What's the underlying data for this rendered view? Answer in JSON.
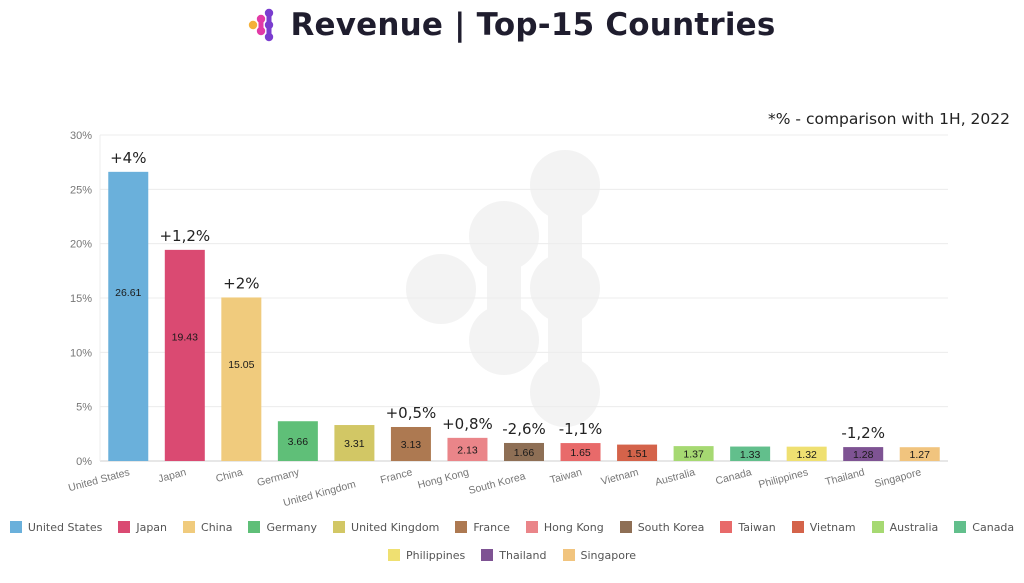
{
  "header": {
    "title": "Revenue | Top-15 Countries",
    "logo": "dots-logo-icon",
    "note": "*% - comparison with 1H, 2022"
  },
  "chart_data": {
    "type": "bar",
    "title": "Revenue | Top-15 Countries",
    "xlabel": "",
    "ylabel": "",
    "ylim": [
      0,
      30
    ],
    "yticks": [
      "0%",
      "5%",
      "10%",
      "15%",
      "20%",
      "25%",
      "30%"
    ],
    "ytick_values": [
      0,
      5,
      10,
      15,
      20,
      25,
      30
    ],
    "grid": true,
    "legend_position": "bottom",
    "categories": [
      "United States",
      "Japan",
      "China",
      "Germany",
      "United Kingdom",
      "France",
      "Hong Kong",
      "South Korea",
      "Taiwan",
      "Vietnam",
      "Australia",
      "Canada",
      "Philippines",
      "Thailand",
      "Singapore"
    ],
    "values": [
      26.61,
      19.43,
      15.05,
      3.66,
      3.31,
      3.13,
      2.13,
      1.66,
      1.65,
      1.51,
      1.37,
      1.33,
      1.32,
      1.28,
      1.27
    ],
    "value_labels": [
      "26.61",
      "19.43",
      "15.05",
      "3.66",
      "3.31",
      "3.13",
      "2.13",
      "1.66",
      "1.65",
      "1.51",
      "1.37",
      "1.33",
      "1.32",
      "1.28",
      "1.27"
    ],
    "colors": [
      "#6ab0db",
      "#da4a72",
      "#f0cb7d",
      "#5fbf78",
      "#d2c765",
      "#ad7951",
      "#ea8589",
      "#8e6f55",
      "#e86a6a",
      "#d4634a",
      "#a6d972",
      "#62bf8c",
      "#efe071",
      "#7e5393",
      "#f1c47e"
    ],
    "annotations": [
      "+4%",
      "+1,2%",
      "+2%",
      "",
      "",
      "+0,5%",
      "+0,8%",
      "-2,6%",
      "-1,1%",
      "",
      "",
      "",
      "",
      "-1,2%",
      ""
    ],
    "note": "*% - comparison with 1H, 2022"
  },
  "legend": {
    "rows": [
      [
        0,
        1,
        2,
        3,
        4,
        5,
        6,
        7,
        8,
        9,
        10,
        11
      ],
      [
        12,
        13,
        14
      ]
    ]
  }
}
